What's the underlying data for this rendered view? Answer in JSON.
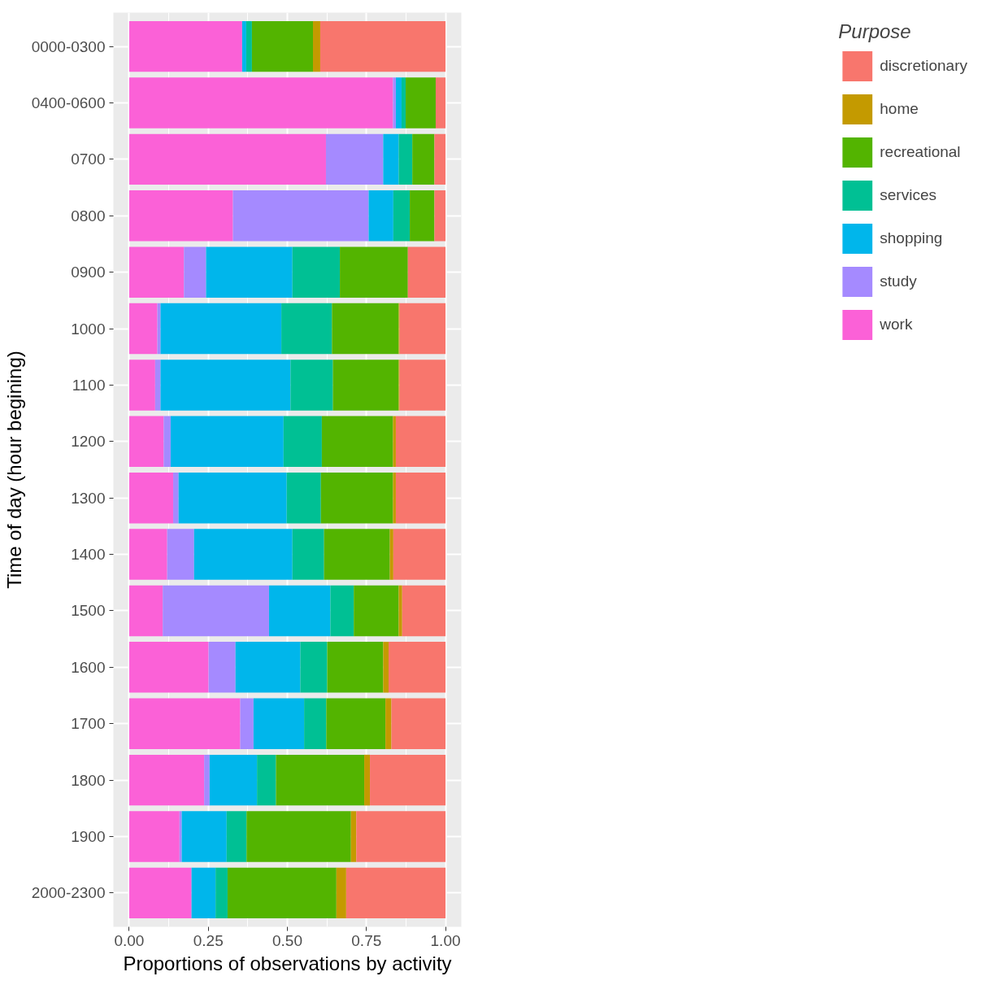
{
  "chart_data": {
    "type": "bar",
    "orientation": "horizontal",
    "stacked": true,
    "xlabel": "Proportions of observations by activity",
    "ylabel": "Time of day (hour begining)",
    "legend_title": "Purpose",
    "categories": [
      "0000-0300",
      "0400-0600",
      "0700",
      "0800",
      "0900",
      "1000",
      "1100",
      "1200",
      "1300",
      "1400",
      "1500",
      "1600",
      "1700",
      "1800",
      "1900",
      "2000-2300"
    ],
    "series": [
      {
        "name": "work",
        "color": "#fb61d7",
        "values": [
          0.357,
          0.834,
          0.622,
          0.328,
          0.173,
          0.089,
          0.082,
          0.109,
          0.139,
          0.12,
          0.106,
          0.251,
          0.351,
          0.237,
          0.159,
          0.197
        ]
      },
      {
        "name": "study",
        "color": "#a58aff",
        "values": [
          0,
          0.009,
          0.181,
          0.429,
          0.07,
          0.01,
          0.017,
          0.022,
          0.017,
          0.085,
          0.336,
          0.085,
          0.042,
          0.017,
          0.007,
          0
        ]
      },
      {
        "name": "shopping",
        "color": "#00b6eb",
        "values": [
          0.013,
          0.018,
          0.049,
          0.078,
          0.273,
          0.382,
          0.411,
          0.357,
          0.342,
          0.311,
          0.194,
          0.205,
          0.16,
          0.15,
          0.142,
          0.076
        ]
      },
      {
        "name": "services",
        "color": "#00c094",
        "values": [
          0.018,
          0.013,
          0.043,
          0.052,
          0.15,
          0.16,
          0.134,
          0.121,
          0.108,
          0.1,
          0.074,
          0.085,
          0.07,
          0.06,
          0.063,
          0.038
        ]
      },
      {
        "name": "recreational",
        "color": "#53b400",
        "values": [
          0.193,
          0.095,
          0.07,
          0.078,
          0.215,
          0.211,
          0.208,
          0.225,
          0.228,
          0.208,
          0.142,
          0.177,
          0.187,
          0.279,
          0.33,
          0.344
        ]
      },
      {
        "name": "home",
        "color": "#c49a00",
        "values": [
          0.023,
          0,
          0,
          0,
          0,
          0.003,
          0.003,
          0.009,
          0.009,
          0.011,
          0.011,
          0.017,
          0.019,
          0.018,
          0.017,
          0.031
        ]
      },
      {
        "name": "discretionary",
        "color": "#f8766d",
        "values": [
          0.396,
          0.031,
          0.035,
          0.035,
          0.119,
          0.145,
          0.145,
          0.157,
          0.157,
          0.165,
          0.137,
          0.18,
          0.171,
          0.239,
          0.282,
          0.314
        ]
      }
    ],
    "xlim": [
      -0.05,
      1.05
    ],
    "xticks": [
      {
        "value": 0,
        "label": "0.00"
      },
      {
        "value": 0.25,
        "label": "0.25"
      },
      {
        "value": 0.5,
        "label": "0.50"
      },
      {
        "value": 0.75,
        "label": "0.75"
      },
      {
        "value": 1,
        "label": "1.00"
      }
    ],
    "grid": true,
    "legend": "right"
  }
}
